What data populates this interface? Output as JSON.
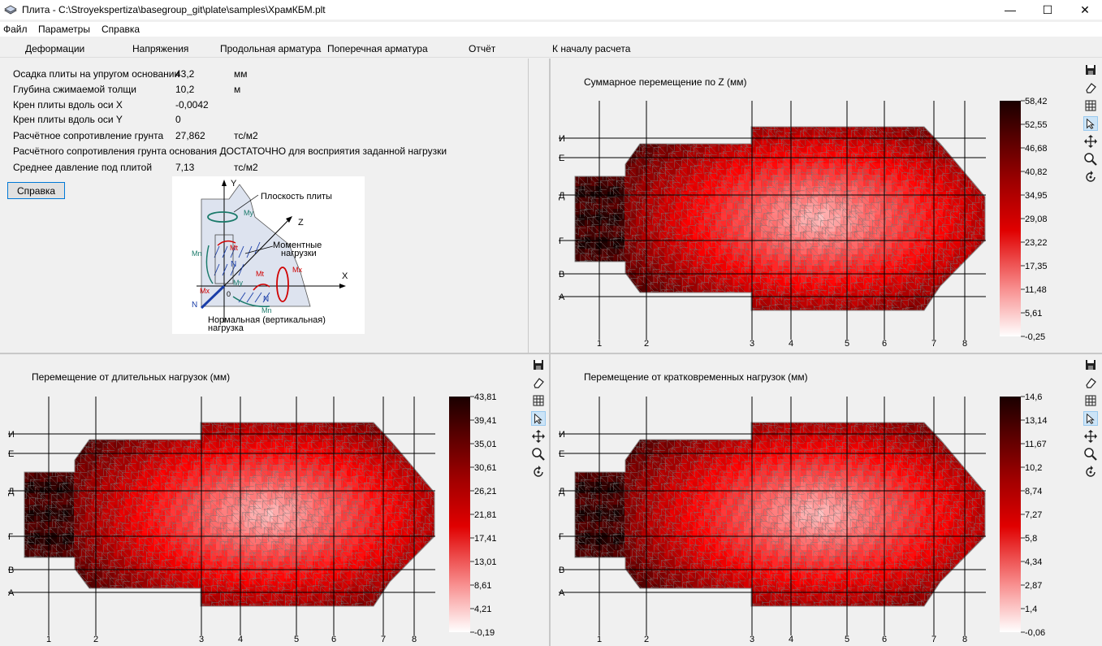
{
  "window": {
    "title": "Плита - C:\\Stroyekspertiza\\basegroup_git\\plate\\samples\\ХрамКБМ.plt",
    "minimize": "—",
    "maximize": "☐",
    "close": "✕"
  },
  "menu": [
    "Файл",
    "Параметры",
    "Справка"
  ],
  "tabs": [
    "Деформации",
    "Напряжения",
    "Продольная арматура",
    "Поперечная арматура",
    "Отчёт",
    "К началу расчета"
  ],
  "info": {
    "rows": [
      {
        "label": "Осадка плиты на упругом основании",
        "value": "43,2",
        "unit": "мм"
      },
      {
        "label": "Глубина сжимаемой толщи",
        "value": "10,2",
        "unit": "м"
      },
      {
        "label": "Крен плиты вдоль оси X",
        "value": "-0,0042",
        "unit": ""
      },
      {
        "label": "Крен плиты вдоль оси Y",
        "value": "0",
        "unit": ""
      },
      {
        "label": "Расчётное сопротивление грунта",
        "value": "27,862",
        "unit": "тс/м2"
      }
    ],
    "sufficiency": "Расчётного сопротивления грунта основания ДОСТАТОЧНО для восприятия заданной нагрузки",
    "avg_pressure": {
      "label": "Среднее давление под плитой",
      "value": "7,13",
      "unit": "тс/м2"
    },
    "help_button": "Справка"
  },
  "diagram": {
    "labels": {
      "y": "Y",
      "z": "Z",
      "x": "X",
      "o": "0",
      "plane": "Плоскость плиты",
      "moment1": "Моментные",
      "moment2": "нагрузки",
      "normal1": "Нормальная (вертикальная)",
      "normal2": "нагрузка",
      "my_top": "My",
      "my_mid": "My",
      "mn_left": "Mn",
      "mn_bottom": "Mn",
      "mt_top": "Mt",
      "mt_mid": "Mt",
      "mx_right": "Mx",
      "mx_left": "Mx",
      "n_mid": "N",
      "n_left": "N",
      "n_bottom": "N"
    }
  },
  "tools": [
    "save-icon",
    "eraser-icon",
    "grid-icon",
    "pointer-icon",
    "move-icon",
    "zoom-icon",
    "rotate-icon"
  ],
  "plots": [
    {
      "id": "total",
      "title": "Суммарное перемещение по Z (мм)",
      "scale": [
        "58,42",
        "52,55",
        "46,68",
        "40,82",
        "34,95",
        "29,08",
        "23,22",
        "17,35",
        "11,48",
        "5,61",
        "-0,25"
      ]
    },
    {
      "id": "long",
      "title": "Перемещение от длительных нагрузок (мм)",
      "scale": [
        "43,81",
        "39,41",
        "35,01",
        "30,61",
        "26,21",
        "21,81",
        "17,41",
        "13,01",
        "8,61",
        "4,21",
        "-0,19"
      ]
    },
    {
      "id": "short",
      "title": "Перемещение от кратковременных нагрузок (мм)",
      "scale": [
        "14,6",
        "13,14",
        "11,67",
        "10,2",
        "8,74",
        "7,27",
        "5,8",
        "4,34",
        "2,87",
        "1,4",
        "-0,06"
      ]
    }
  ],
  "grid": {
    "cols": [
      "1",
      "2",
      "3",
      "4",
      "5",
      "6",
      "7",
      "8"
    ],
    "rows": [
      "И",
      "Е",
      "Д",
      "Г",
      "В",
      "А"
    ]
  },
  "colors": {
    "accent": "#0078d7",
    "deep": "#1a0000",
    "red": "#e00000",
    "light": "#ffffff"
  }
}
